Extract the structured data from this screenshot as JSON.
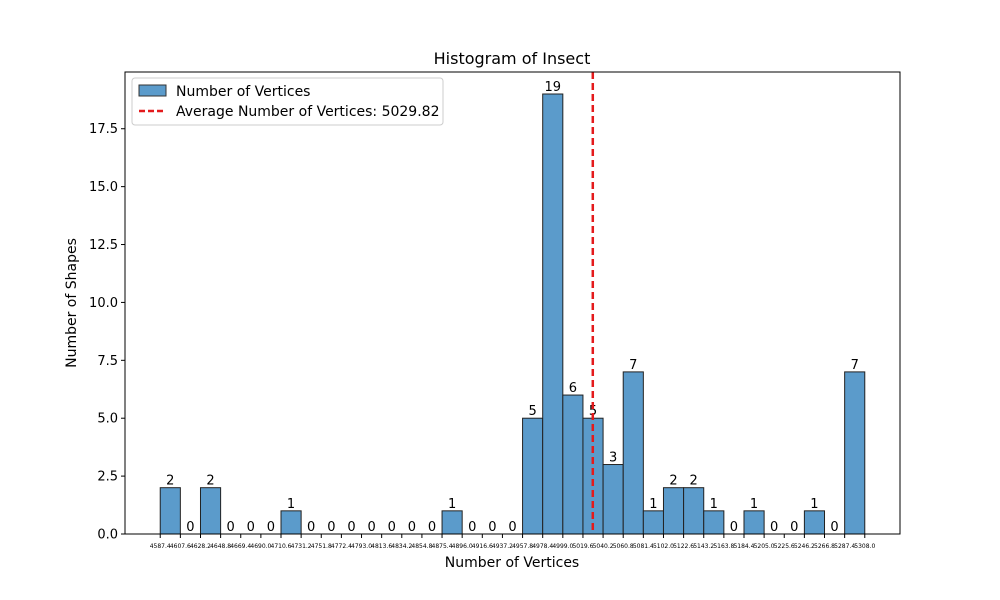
{
  "chart_data": {
    "type": "bar",
    "title": "Histogram of Insect",
    "xlabel": "Number of Vertices",
    "ylabel": "Number of Shapes",
    "ylim": [
      0,
      19.95
    ],
    "yticks": [
      0.0,
      2.5,
      5.0,
      7.5,
      10.0,
      12.5,
      15.0,
      17.5
    ],
    "bin_edges": [
      4587.4,
      4607.6,
      4628.2,
      4648.8,
      4669.4,
      4690.0,
      4710.6,
      4731.2,
      4751.8,
      4772.4,
      4793.0,
      4813.6,
      4834.2,
      4854.8,
      4875.4,
      4896.0,
      4916.6,
      4937.2,
      4957.8,
      4978.4,
      4999.0,
      5019.6,
      5040.2,
      5060.8,
      5081.4,
      5102.0,
      5122.6,
      5143.2,
      5163.8,
      5184.4,
      5205.0,
      5225.6,
      5246.2,
      5266.8,
      5287.4,
      5308.0
    ],
    "bin_labels": [
      "4587.4",
      "4607.6",
      "4628.2",
      "4648.8",
      "4669.4",
      "4690.0",
      "4710.6",
      "4731.2",
      "4751.8",
      "4772.4",
      "4793.0",
      "4813.6",
      "4834.2",
      "4854.8",
      "4875.4",
      "4896.0",
      "4916.6",
      "4937.2",
      "4957.8",
      "4978.4",
      "4999.0",
      "5019.6",
      "5040.2",
      "5060.8",
      "5081.4",
      "5102.0",
      "5122.6",
      "5143.2",
      "5163.8",
      "5184.4",
      "5205.0",
      "5225.6",
      "5246.2",
      "5266.8",
      "5287.4",
      "5308.0"
    ],
    "values": [
      2,
      0,
      2,
      0,
      0,
      0,
      1,
      0,
      0,
      0,
      0,
      0,
      0,
      0,
      1,
      0,
      0,
      0,
      5,
      19,
      6,
      5,
      3,
      7,
      1,
      2,
      2,
      1,
      0,
      1,
      0,
      0,
      1,
      0,
      7
    ],
    "series": [
      {
        "name": "Number of Vertices",
        "color": "#5b9bcb"
      }
    ],
    "average": {
      "label": "Average Number of Vertices: 5029.82",
      "value": 5029.82,
      "color": "#e41a1c"
    },
    "legend_position": "top-left",
    "grid": false
  }
}
